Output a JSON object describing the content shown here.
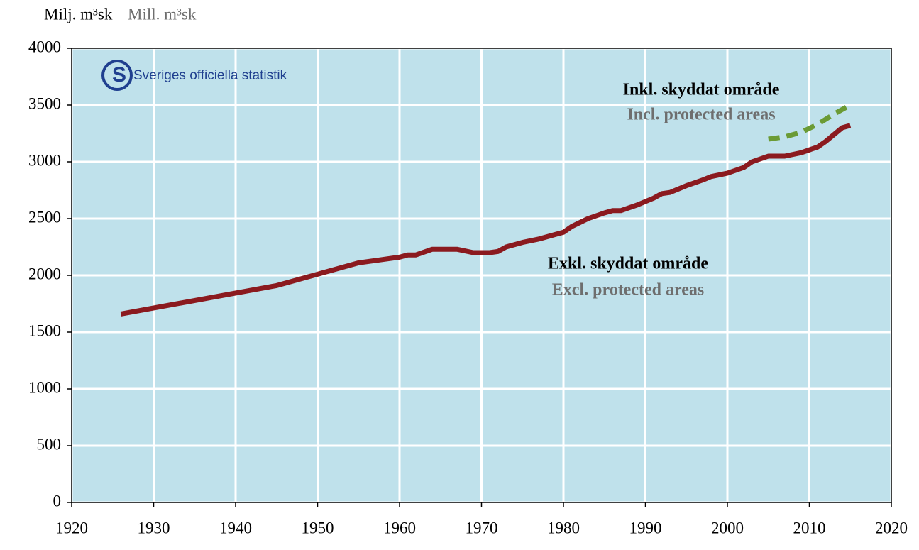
{
  "chart_data": {
    "type": "line",
    "ylabel": "Milj.  m³sk",
    "ylabel_en": "Mill.  m³sk",
    "logo": "Sveriges officiella statistik",
    "xlim": [
      1920,
      2020
    ],
    "xticks": [
      1920,
      1930,
      1940,
      1950,
      1960,
      1970,
      1980,
      1990,
      2000,
      2010,
      2020
    ],
    "ylim": [
      0,
      4000
    ],
    "yticks": [
      0,
      500,
      1000,
      1500,
      2000,
      2500,
      3000,
      3500,
      4000
    ],
    "grid": true,
    "series": [
      {
        "name": "Exkl. skyddat område",
        "name_en": "Excl. protected areas",
        "color": "#8b1a1f",
        "dashed": false,
        "x": [
          1926,
          1945,
          1955,
          1957,
          1960,
          1961,
          1962,
          1964,
          1967,
          1969,
          1971,
          1972,
          1973,
          1975,
          1977,
          1979,
          1980,
          1981,
          1983,
          1985,
          1986,
          1987,
          1989,
          1991,
          1992,
          1993,
          1995,
          1997,
          1998,
          2000,
          2002,
          2003,
          2005,
          2007,
          2009,
          2011,
          2012,
          2014,
          2015
        ],
        "values": [
          1660,
          1910,
          2110,
          2130,
          2160,
          2180,
          2180,
          2230,
          2230,
          2200,
          2200,
          2210,
          2250,
          2290,
          2320,
          2360,
          2380,
          2430,
          2500,
          2550,
          2570,
          2570,
          2620,
          2680,
          2720,
          2730,
          2790,
          2840,
          2870,
          2900,
          2950,
          3000,
          3050,
          3050,
          3080,
          3130,
          3180,
          3300,
          3320
        ]
      },
      {
        "name": "Inkl. skyddat område",
        "name_en": "Incl. protected areas",
        "color": "#6b9b35",
        "dashed": true,
        "x": [
          2005,
          2007,
          2009,
          2011,
          2013,
          2015
        ],
        "values": [
          3200,
          3220,
          3260,
          3330,
          3420,
          3500
        ]
      }
    ]
  }
}
